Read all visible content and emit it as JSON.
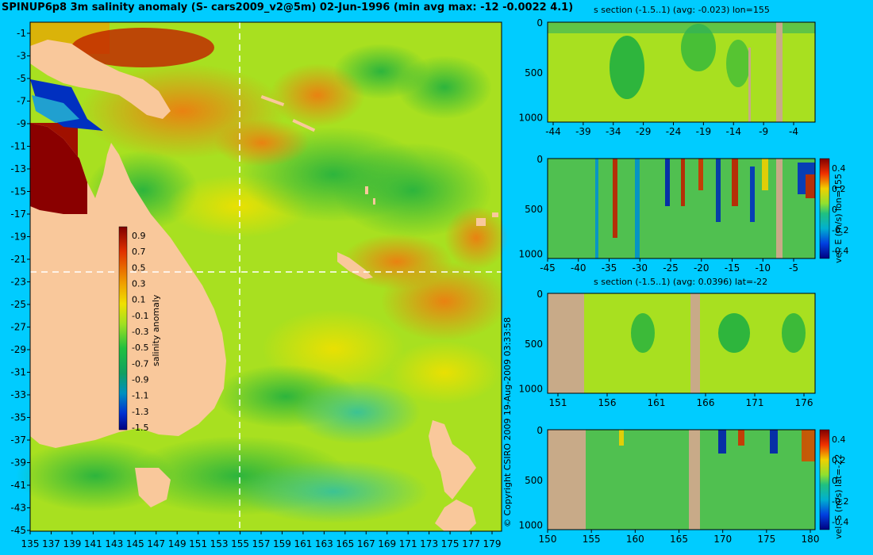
{
  "main_title": "SPINUP6p8 3m salinity anomaly (S- cars2009_v2@5m) 02-Jun-1996 (min avg max: -12 -0.0022 4.1)",
  "map": {
    "lat_labels": [
      "-1",
      "-3",
      "-5",
      "-7",
      "-9",
      "-11",
      "-13",
      "-15",
      "-17",
      "-19",
      "-21",
      "-23",
      "-25",
      "-27",
      "-29",
      "-31",
      "-33",
      "-35",
      "-37",
      "-39",
      "-41",
      "-43",
      "-45"
    ],
    "lon_labels": [
      "135",
      "137",
      "139",
      "141",
      "143",
      "145",
      "147",
      "149",
      "151",
      "153",
      "155",
      "157",
      "159",
      "161",
      "163",
      "165",
      "167",
      "169",
      "171",
      "173",
      "175",
      "177",
      "179"
    ],
    "colorbar": {
      "label": "salinity anomaly",
      "ticks": [
        "0.9",
        "0.7",
        "0.5",
        "0.3",
        "0.1",
        "-0.1",
        "-0.3",
        "-0.5",
        "-0.7",
        "-0.9",
        "-1.1",
        "-1.3",
        "-1.5"
      ]
    },
    "section_lon": 155,
    "section_lat": -22,
    "colors": {
      "ocean_mid": "#a8e020",
      "land": "#f9c89b",
      "frame": "#00ccff"
    }
  },
  "copyright": "© Copyright CSIRO 2009   19-Aug-2009 03:33:58",
  "panels": [
    {
      "title": "s section (-1.5..1) (avg: -0.023) lon=155",
      "x_ticks": [
        "-44",
        "-39",
        "-34",
        "-29",
        "-24",
        "-19",
        "-14",
        "-9",
        "-4"
      ],
      "y_ticks": [
        "0",
        "500",
        "1000"
      ],
      "colorbar": null
    },
    {
      "title": "",
      "x_ticks": [
        "-45",
        "-40",
        "-35",
        "-30",
        "-25",
        "-20",
        "-15",
        "-10",
        "-5"
      ],
      "y_ticks": [
        "0",
        "500",
        "1000"
      ],
      "colorbar": {
        "label": "vel. E (m/s) lon=155",
        "ticks": [
          "0.4",
          "0.2",
          "0",
          "-0.2",
          "-0.4"
        ]
      }
    },
    {
      "title": "s section (-1.5..1) (avg: 0.0396) lat=-22",
      "x_ticks": [
        "151",
        "156",
        "161",
        "166",
        "171",
        "176"
      ],
      "y_ticks": [
        "0",
        "500",
        "1000"
      ],
      "colorbar": null
    },
    {
      "title": "",
      "x_ticks": [
        "150",
        "155",
        "160",
        "165",
        "170",
        "175",
        "180"
      ],
      "y_ticks": [
        "0",
        "500",
        "1000"
      ],
      "colorbar": {
        "label": "vel. S (m/s) lat=-22",
        "ticks": [
          "0.4",
          "0.2",
          "0",
          "-0.2",
          "-0.4"
        ]
      }
    }
  ]
}
